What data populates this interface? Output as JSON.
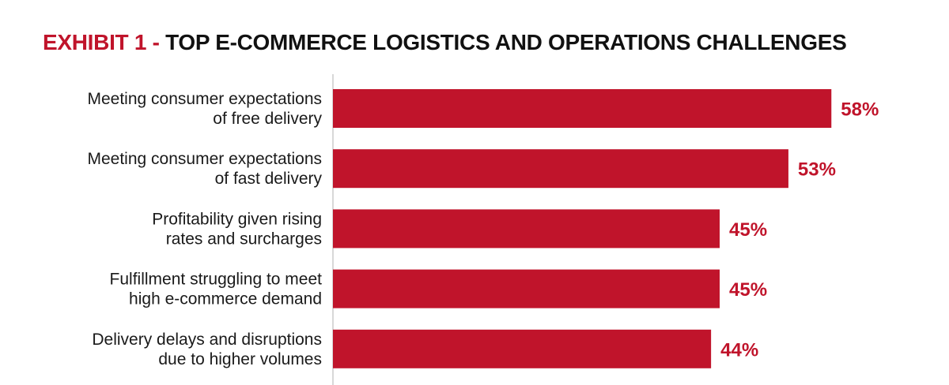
{
  "title": {
    "prefix": "EXHIBIT 1 - ",
    "main": "TOP E-COMMERCE LOGISTICS AND OPERATIONS CHALLENGES"
  },
  "colors": {
    "bar": "#c0142b",
    "accent": "#c0142b",
    "axis": "#cccccc",
    "text": "#1a1a1a"
  },
  "chart_data": {
    "type": "bar",
    "orientation": "horizontal",
    "title": "EXHIBIT 1 - TOP E-COMMERCE LOGISTICS AND OPERATIONS CHALLENGES",
    "categories": [
      [
        "Meeting consumer expectations",
        "of free delivery"
      ],
      [
        "Meeting consumer expectations",
        "of fast delivery"
      ],
      [
        "Profitability given rising",
        "rates and surcharges"
      ],
      [
        "Fulfillment struggling to meet",
        "high e-commerce demand"
      ],
      [
        "Delivery delays and disruptions",
        "due to higher volumes"
      ]
    ],
    "values": [
      58,
      53,
      45,
      45,
      44
    ],
    "value_labels": [
      "58%",
      "53%",
      "45%",
      "45%",
      "44%"
    ],
    "xlim": [
      0,
      60
    ],
    "grid": false,
    "legend": "none"
  }
}
